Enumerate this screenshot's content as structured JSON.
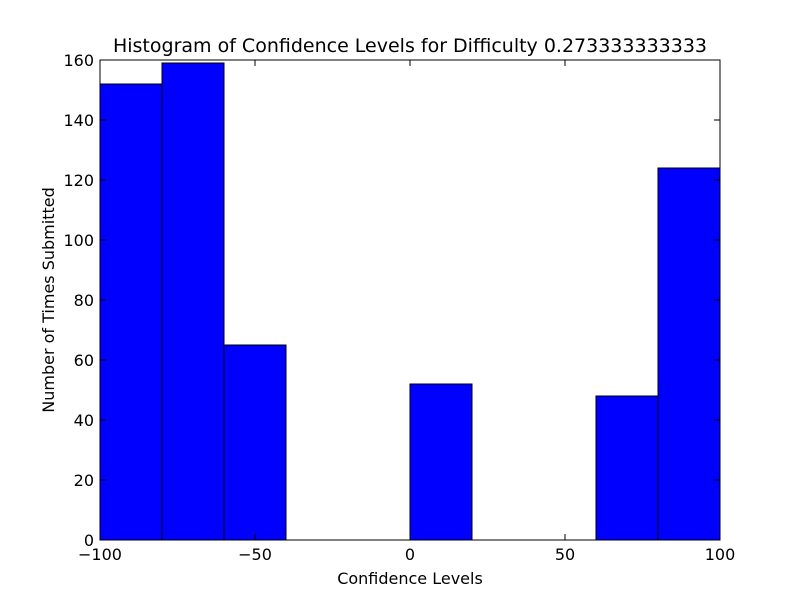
{
  "chart_data": {
    "type": "bar",
    "title": "Histogram of Confidence Levels for Difficulty 0.273333333333",
    "xlabel": "Confidence Levels",
    "ylabel": "Number of Times Submitted",
    "xlim": [
      -100,
      100
    ],
    "ylim": [
      0,
      160
    ],
    "xticks": [
      -100,
      -50,
      0,
      50,
      100
    ],
    "xtick_labels": [
      "−100",
      "−50",
      "0",
      "50",
      "100"
    ],
    "yticks": [
      0,
      20,
      40,
      60,
      80,
      100,
      120,
      140,
      160
    ],
    "ytick_labels": [
      "0",
      "20",
      "40",
      "60",
      "80",
      "100",
      "120",
      "140",
      "160"
    ],
    "bin_edges": [
      -100,
      -80,
      -60,
      -40,
      -20,
      0,
      20,
      40,
      60,
      80,
      100
    ],
    "values": [
      152,
      159,
      65,
      0,
      0,
      52,
      0,
      0,
      48,
      124
    ],
    "bar_color": "#0000ff",
    "edge_color": "#000000",
    "grid": false
  }
}
